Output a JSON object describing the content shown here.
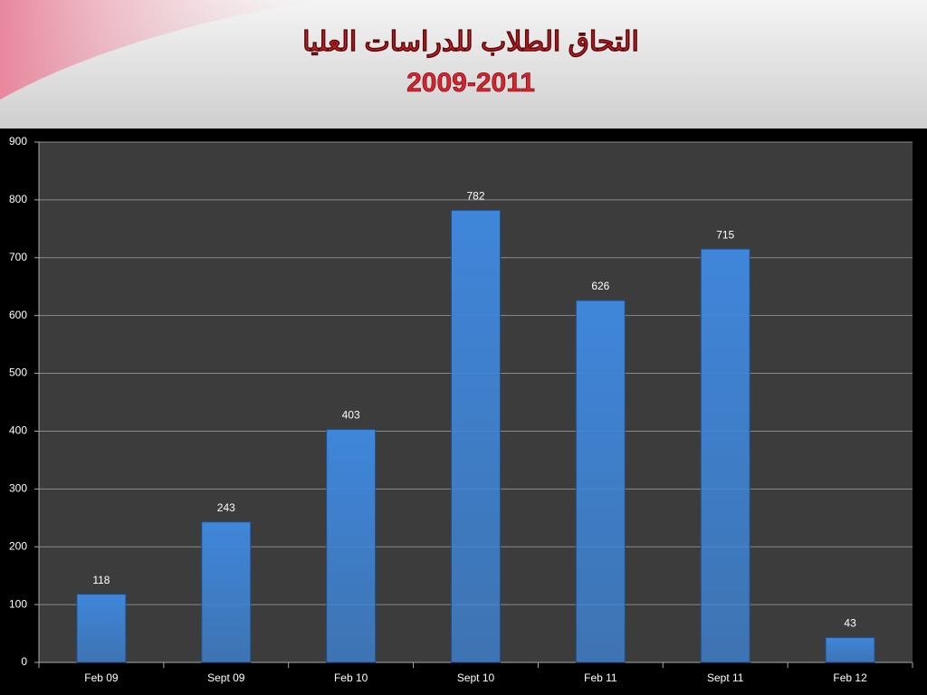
{
  "chart_data": {
    "type": "bar",
    "title": "التحاق الطلاب للدراسات العليا",
    "subtitle": "2009-2011",
    "categories": [
      "Feb 09",
      "Sept 09",
      "Feb 10",
      "Sept 10",
      "Feb 11",
      "Sept 11",
      "Feb 12"
    ],
    "values": [
      118,
      243,
      403,
      782,
      626,
      715,
      43
    ],
    "color": "#3f86da",
    "ylim": [
      0,
      900
    ],
    "yticks": [
      0,
      100,
      200,
      300,
      400,
      500,
      600,
      700,
      800,
      900
    ],
    "grid": true
  }
}
